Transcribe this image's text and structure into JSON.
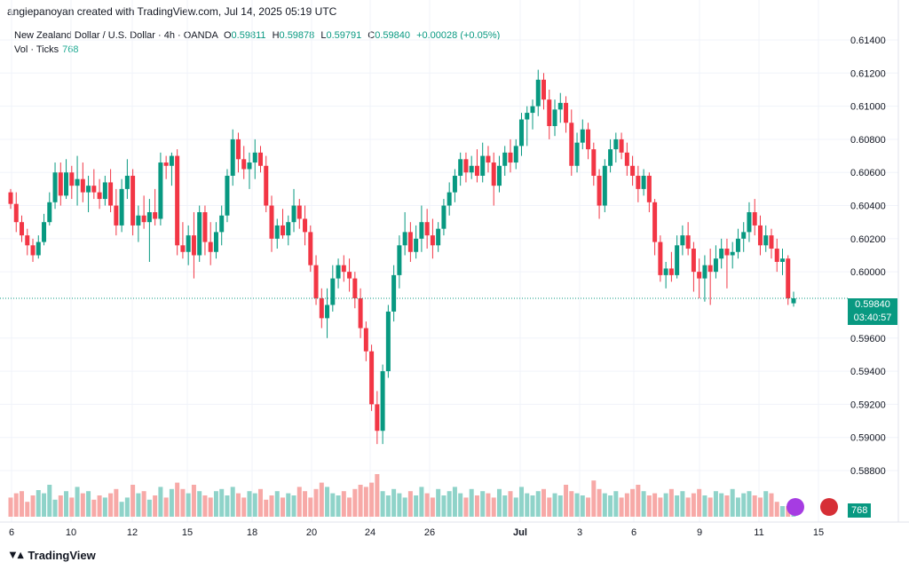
{
  "header": {
    "created_by": "angiepanoyan created with TradingView.com, Jul 14, 2025 05:19 UTC"
  },
  "legend": {
    "symbol": "New Zealand Dollar / U.S. Dollar · 4h · OANDA",
    "open_label": "O",
    "open": "0.59811",
    "high_label": "H",
    "high": "0.59878",
    "low_label": "L",
    "low": "0.59791",
    "close_label": "C",
    "close": "0.59840",
    "change": "+0.00028 (+0.05%)",
    "vol_label": "Vol · Ticks",
    "vol_value": "768"
  },
  "price_tag": {
    "price": "0.59840",
    "countdown": "03:40:57"
  },
  "volume_tag": "768",
  "footer": {
    "brand": "TradingView"
  },
  "colors": {
    "up": "#089981",
    "down": "#f23645",
    "vol_up": "#8fd3c9",
    "vol_down": "#f7a9a7"
  },
  "chart_data": {
    "type": "candlestick",
    "y_ticks": [
      "0.61400",
      "0.61200",
      "0.61000",
      "0.60800",
      "0.60600",
      "0.60400",
      "0.60200",
      "0.60000",
      "0.59600",
      "0.59400",
      "0.59200",
      "0.59000",
      "0.58800"
    ],
    "ylim": [
      0.587,
      0.615
    ],
    "x_ticks": [
      "6",
      "10",
      "12",
      "15",
      "18",
      "20",
      "24",
      "26",
      "Jul",
      "3",
      "6",
      "9",
      "11",
      "15"
    ],
    "grid": true,
    "last_price": 0.5984,
    "candles": [
      [
        0.6048,
        0.605,
        0.6038,
        0.6041
      ],
      [
        0.6041,
        0.6048,
        0.6024,
        0.603
      ],
      [
        0.603,
        0.6034,
        0.6018,
        0.6022
      ],
      [
        0.6022,
        0.6026,
        0.601,
        0.6016
      ],
      [
        0.6016,
        0.602,
        0.6006,
        0.601
      ],
      [
        0.601,
        0.6022,
        0.6008,
        0.6018
      ],
      [
        0.6018,
        0.6035,
        0.6016,
        0.603
      ],
      [
        0.603,
        0.6048,
        0.6028,
        0.6042
      ],
      [
        0.6042,
        0.6066,
        0.6038,
        0.606
      ],
      [
        0.606,
        0.6066,
        0.604,
        0.6046
      ],
      [
        0.6046,
        0.6068,
        0.6044,
        0.606
      ],
      [
        0.606,
        0.6064,
        0.6044,
        0.6052
      ],
      [
        0.6052,
        0.607,
        0.604,
        0.6056
      ],
      [
        0.6056,
        0.6066,
        0.6042,
        0.6048
      ],
      [
        0.6048,
        0.6058,
        0.6036,
        0.6052
      ],
      [
        0.6052,
        0.6062,
        0.6044,
        0.6048
      ],
      [
        0.6048,
        0.6056,
        0.6038,
        0.6044
      ],
      [
        0.6044,
        0.6058,
        0.604,
        0.6054
      ],
      [
        0.6054,
        0.6062,
        0.6036,
        0.604
      ],
      [
        0.604,
        0.605,
        0.6022,
        0.6028
      ],
      [
        0.6028,
        0.6056,
        0.6024,
        0.605
      ],
      [
        0.605,
        0.6068,
        0.6044,
        0.6058
      ],
      [
        0.6058,
        0.6062,
        0.6022,
        0.6028
      ],
      [
        0.6028,
        0.604,
        0.6018,
        0.6034
      ],
      [
        0.6034,
        0.6046,
        0.6026,
        0.603
      ],
      [
        0.603,
        0.6044,
        0.6006,
        0.6036
      ],
      [
        0.6036,
        0.605,
        0.6028,
        0.6032
      ],
      [
        0.6032,
        0.6072,
        0.6028,
        0.6066
      ],
      [
        0.6066,
        0.607,
        0.6056,
        0.6064
      ],
      [
        0.6064,
        0.6072,
        0.6052,
        0.607
      ],
      [
        0.607,
        0.6074,
        0.601,
        0.6016
      ],
      [
        0.6016,
        0.603,
        0.6008,
        0.6012
      ],
      [
        0.6012,
        0.6028,
        0.6004,
        0.6022
      ],
      [
        0.6022,
        0.6036,
        0.5996,
        0.601
      ],
      [
        0.601,
        0.604,
        0.6006,
        0.6036
      ],
      [
        0.6036,
        0.604,
        0.601,
        0.6018
      ],
      [
        0.6018,
        0.603,
        0.6004,
        0.6012
      ],
      [
        0.6012,
        0.603,
        0.6008,
        0.6024
      ],
      [
        0.6024,
        0.604,
        0.6016,
        0.6034
      ],
      [
        0.6034,
        0.6062,
        0.603,
        0.6058
      ],
      [
        0.6058,
        0.6086,
        0.6052,
        0.608
      ],
      [
        0.608,
        0.6084,
        0.606,
        0.6068
      ],
      [
        0.6068,
        0.6076,
        0.6056,
        0.6062
      ],
      [
        0.6062,
        0.6072,
        0.605,
        0.6066
      ],
      [
        0.6066,
        0.608,
        0.6056,
        0.6072
      ],
      [
        0.6072,
        0.6076,
        0.606,
        0.6064
      ],
      [
        0.6064,
        0.607,
        0.6036,
        0.604
      ],
      [
        0.604,
        0.6046,
        0.6012,
        0.602
      ],
      [
        0.602,
        0.6032,
        0.6014,
        0.6028
      ],
      [
        0.6028,
        0.6038,
        0.602,
        0.6022
      ],
      [
        0.6022,
        0.6034,
        0.6016,
        0.603
      ],
      [
        0.603,
        0.605,
        0.6024,
        0.604
      ],
      [
        0.604,
        0.6044,
        0.6026,
        0.6032
      ],
      [
        0.6032,
        0.604,
        0.6016,
        0.6024
      ],
      [
        0.6024,
        0.6028,
        0.6,
        0.6004
      ],
      [
        0.6004,
        0.601,
        0.598,
        0.5984
      ],
      [
        0.5984,
        0.599,
        0.5966,
        0.5972
      ],
      [
        0.5972,
        0.599,
        0.596,
        0.598
      ],
      [
        0.598,
        0.6004,
        0.5976,
        0.5996
      ],
      [
        0.5996,
        0.6008,
        0.599,
        0.6004
      ],
      [
        0.6004,
        0.601,
        0.5994,
        0.6
      ],
      [
        0.6,
        0.6008,
        0.5988,
        0.5996
      ],
      [
        0.5996,
        0.6,
        0.5978,
        0.5984
      ],
      [
        0.5984,
        0.599,
        0.596,
        0.5966
      ],
      [
        0.5966,
        0.597,
        0.5946,
        0.5952
      ],
      [
        0.5952,
        0.5956,
        0.5916,
        0.592
      ],
      [
        0.592,
        0.5928,
        0.5896,
        0.5904
      ],
      [
        0.5904,
        0.5944,
        0.5896,
        0.594
      ],
      [
        0.594,
        0.598,
        0.5936,
        0.5976
      ],
      [
        0.5976,
        0.6004,
        0.597,
        0.5998
      ],
      [
        0.5998,
        0.6022,
        0.599,
        0.6016
      ],
      [
        0.6016,
        0.6036,
        0.601,
        0.6024
      ],
      [
        0.6024,
        0.603,
        0.6006,
        0.6012
      ],
      [
        0.6012,
        0.6028,
        0.6008,
        0.602
      ],
      [
        0.602,
        0.604,
        0.6012,
        0.603
      ],
      [
        0.603,
        0.6038,
        0.6014,
        0.6022
      ],
      [
        0.6022,
        0.6032,
        0.6008,
        0.6016
      ],
      [
        0.6016,
        0.603,
        0.6012,
        0.6026
      ],
      [
        0.6026,
        0.6044,
        0.6022,
        0.604
      ],
      [
        0.604,
        0.6054,
        0.6034,
        0.6048
      ],
      [
        0.6048,
        0.6062,
        0.6042,
        0.6058
      ],
      [
        0.6058,
        0.6072,
        0.6052,
        0.6068
      ],
      [
        0.6068,
        0.6072,
        0.6054,
        0.606
      ],
      [
        0.606,
        0.607,
        0.6056,
        0.6064
      ],
      [
        0.6064,
        0.6074,
        0.6054,
        0.6058
      ],
      [
        0.6058,
        0.6078,
        0.6054,
        0.607
      ],
      [
        0.607,
        0.6076,
        0.606,
        0.6066
      ],
      [
        0.6066,
        0.6072,
        0.604,
        0.6052
      ],
      [
        0.6052,
        0.607,
        0.6048,
        0.6064
      ],
      [
        0.6064,
        0.6076,
        0.6058,
        0.6072
      ],
      [
        0.6072,
        0.608,
        0.606,
        0.6066
      ],
      [
        0.6066,
        0.608,
        0.6062,
        0.6076
      ],
      [
        0.6076,
        0.6096,
        0.607,
        0.6092
      ],
      [
        0.6092,
        0.61,
        0.6076,
        0.6096
      ],
      [
        0.6096,
        0.6104,
        0.6086,
        0.61
      ],
      [
        0.61,
        0.6122,
        0.6094,
        0.6116
      ],
      [
        0.6116,
        0.612,
        0.6098,
        0.6104
      ],
      [
        0.6104,
        0.611,
        0.608,
        0.6088
      ],
      [
        0.6088,
        0.6104,
        0.6082,
        0.6098
      ],
      [
        0.6098,
        0.6108,
        0.609,
        0.6102
      ],
      [
        0.6102,
        0.6106,
        0.6084,
        0.609
      ],
      [
        0.609,
        0.6098,
        0.6058,
        0.6064
      ],
      [
        0.6064,
        0.6084,
        0.606,
        0.6078
      ],
      [
        0.6078,
        0.6092,
        0.6074,
        0.6086
      ],
      [
        0.6086,
        0.609,
        0.6068,
        0.6074
      ],
      [
        0.6074,
        0.6078,
        0.6052,
        0.6058
      ],
      [
        0.6058,
        0.6062,
        0.6032,
        0.604
      ],
      [
        0.604,
        0.6068,
        0.6036,
        0.6064
      ],
      [
        0.6064,
        0.608,
        0.606,
        0.6074
      ],
      [
        0.6074,
        0.6084,
        0.6066,
        0.608
      ],
      [
        0.608,
        0.6084,
        0.6068,
        0.6072
      ],
      [
        0.6072,
        0.6078,
        0.6058,
        0.6064
      ],
      [
        0.6064,
        0.607,
        0.6052,
        0.6058
      ],
      [
        0.6058,
        0.6064,
        0.6042,
        0.605
      ],
      [
        0.605,
        0.6062,
        0.6046,
        0.6058
      ],
      [
        0.6058,
        0.606,
        0.6036,
        0.6042
      ],
      [
        0.6042,
        0.6044,
        0.601,
        0.6018
      ],
      [
        0.6018,
        0.6022,
        0.5994,
        0.5998
      ],
      [
        0.5998,
        0.6006,
        0.599,
        0.6002
      ],
      [
        0.6002,
        0.6012,
        0.5994,
        0.5998
      ],
      [
        0.5998,
        0.6022,
        0.5996,
        0.6016
      ],
      [
        0.6016,
        0.6028,
        0.601,
        0.6022
      ],
      [
        0.6022,
        0.603,
        0.601,
        0.6014
      ],
      [
        0.6014,
        0.6018,
        0.5988,
        0.6
      ],
      [
        0.6,
        0.6008,
        0.5984,
        0.5996
      ],
      [
        0.5996,
        0.601,
        0.5982,
        0.6004
      ],
      [
        0.6004,
        0.6014,
        0.598,
        0.6
      ],
      [
        0.6,
        0.6016,
        0.5996,
        0.6008
      ],
      [
        0.6008,
        0.602,
        0.6002,
        0.6014
      ],
      [
        0.6014,
        0.602,
        0.599,
        0.601
      ],
      [
        0.601,
        0.6018,
        0.6002,
        0.6012
      ],
      [
        0.6012,
        0.6026,
        0.6008,
        0.602
      ],
      [
        0.602,
        0.603,
        0.6012,
        0.6024
      ],
      [
        0.6024,
        0.6042,
        0.6018,
        0.6036
      ],
      [
        0.6036,
        0.6044,
        0.6022,
        0.6028
      ],
      [
        0.6028,
        0.6034,
        0.601,
        0.6016
      ],
      [
        0.6016,
        0.6028,
        0.6012,
        0.6022
      ],
      [
        0.6022,
        0.6026,
        0.6008,
        0.6014
      ],
      [
        0.6014,
        0.602,
        0.6,
        0.6006
      ],
      [
        0.6006,
        0.6014,
        0.5998,
        0.6008
      ],
      [
        0.6008,
        0.601,
        0.598,
        0.5984
      ],
      [
        0.5981,
        0.5988,
        0.5979,
        0.5984
      ]
    ],
    "volumes": [
      18,
      22,
      24,
      14,
      20,
      25,
      22,
      30,
      16,
      20,
      24,
      18,
      28,
      22,
      24,
      16,
      20,
      18,
      22,
      26,
      14,
      18,
      30,
      22,
      24,
      16,
      20,
      28,
      18,
      26,
      32,
      26,
      22,
      30,
      24,
      20,
      18,
      24,
      26,
      20,
      28,
      22,
      18,
      24,
      22,
      26,
      16,
      20,
      24,
      18,
      22,
      20,
      28,
      24,
      18,
      26,
      32,
      28,
      22,
      20,
      24,
      18,
      26,
      30,
      28,
      32,
      40,
      24,
      20,
      26,
      22,
      18,
      24,
      20,
      28,
      22,
      18,
      26,
      20,
      24,
      28,
      22,
      18,
      26,
      20,
      24,
      22,
      18,
      26,
      20,
      24,
      18,
      28,
      22,
      20,
      24,
      26,
      18,
      22,
      20,
      30,
      24,
      22,
      20,
      18,
      34,
      26,
      22,
      20,
      24,
      18,
      22,
      26,
      30,
      24,
      20,
      22,
      18,
      22,
      26,
      20,
      24,
      18,
      22,
      26,
      20,
      18,
      24,
      22,
      20,
      26,
      18,
      22,
      24,
      20,
      18,
      24,
      22,
      14
    ]
  }
}
